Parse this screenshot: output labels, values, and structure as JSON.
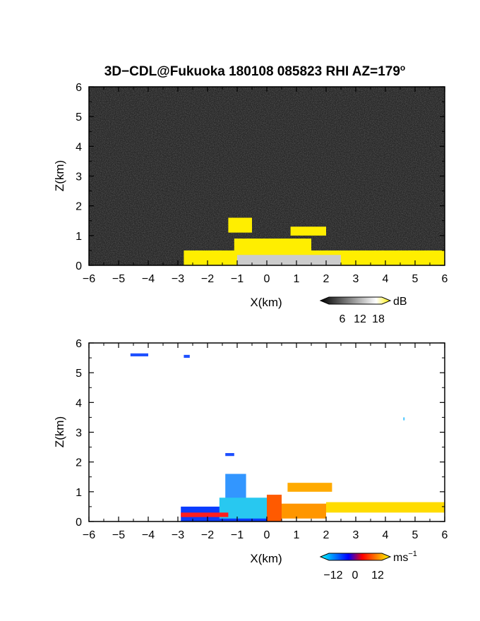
{
  "chart_data": [
    {
      "type": "heatmap",
      "title": "3D−CDL@Fukuoka 180108 085823 RHI AZ=179",
      "title_superscript": "o",
      "xlabel": "X(km)",
      "ylabel": "Z(km)",
      "xlim": [
        -6,
        6
      ],
      "ylim": [
        0,
        6
      ],
      "x_ticks": [
        "−6",
        "−5",
        "−4",
        "−3",
        "−2",
        "−1",
        "0",
        "1",
        "2",
        "3",
        "4",
        "5",
        "6"
      ],
      "y_ticks": [
        "0",
        "1",
        "2",
        "3",
        "4",
        "5",
        "6"
      ],
      "colorbar": {
        "unit": "dB",
        "ticks": [
          "6",
          "12",
          "18"
        ],
        "colors": [
          "#000000",
          "#ffffff",
          "#ffee00"
        ]
      },
      "background": "#262626",
      "echoes": [
        {
          "x": [
            -2.8,
            6.0
          ],
          "z": [
            0.0,
            0.5
          ],
          "dB": 18,
          "color": "#ffee00"
        },
        {
          "x": [
            -1.1,
            1.5
          ],
          "z": [
            0.3,
            0.9
          ],
          "dB": 18,
          "color": "#ffee00"
        },
        {
          "x": [
            -1.3,
            -0.5
          ],
          "z": [
            1.1,
            1.6
          ],
          "dB": 18,
          "color": "#ffee00"
        },
        {
          "x": [
            0.8,
            2.0
          ],
          "z": [
            1.0,
            1.3
          ],
          "dB": 18,
          "color": "#ffee00"
        },
        {
          "x": [
            -1.0,
            2.5
          ],
          "z": [
            0.0,
            0.35
          ],
          "dB": 10,
          "color": "#cccccc"
        }
      ]
    },
    {
      "type": "heatmap",
      "xlabel": "X(km)",
      "ylabel": "Z(km)",
      "xlim": [
        -6,
        6
      ],
      "ylim": [
        0,
        6
      ],
      "x_ticks": [
        "−6",
        "−5",
        "−4",
        "−3",
        "−2",
        "−1",
        "0",
        "1",
        "2",
        "3",
        "4",
        "5",
        "6"
      ],
      "y_ticks": [
        "0",
        "1",
        "2",
        "3",
        "4",
        "5",
        "6"
      ],
      "colorbar": {
        "unit": "ms",
        "unit_superscript": "−1",
        "ticks": [
          "−12",
          "0",
          "12"
        ],
        "colors": [
          "#00ffff",
          "#0000ff",
          "#ff0000",
          "#ffff00"
        ]
      },
      "background": "#ffffff",
      "echoes": [
        {
          "x": [
            -4.6,
            -4.0
          ],
          "z": [
            5.55,
            5.65
          ],
          "velocity": -14,
          "color": "#1e50ff"
        },
        {
          "x": [
            -2.8,
            -2.6
          ],
          "z": [
            5.5,
            5.6
          ],
          "velocity": -14,
          "color": "#1e50ff"
        },
        {
          "x": [
            4.6,
            4.65
          ],
          "z": [
            3.4,
            3.5
          ],
          "velocity": -6,
          "color": "#50c8ff"
        },
        {
          "x": [
            -1.4,
            -1.1
          ],
          "z": [
            2.2,
            2.3
          ],
          "velocity": -14,
          "color": "#1e50ff"
        },
        {
          "x": [
            -1.4,
            -0.7
          ],
          "z": [
            0.6,
            1.6
          ],
          "velocity": -8,
          "color": "#3296ff"
        },
        {
          "x": [
            -2.9,
            0.0
          ],
          "z": [
            0.0,
            0.5
          ],
          "velocity": -10,
          "color": "#0a3cff"
        },
        {
          "x": [
            -1.6,
            0.0
          ],
          "z": [
            0.1,
            0.8
          ],
          "velocity": -5,
          "color": "#28c8f0"
        },
        {
          "x": [
            0.0,
            0.5
          ],
          "z": [
            0.0,
            0.9
          ],
          "velocity": 5,
          "color": "#ff5a00"
        },
        {
          "x": [
            0.5,
            2.0
          ],
          "z": [
            0.1,
            0.6
          ],
          "velocity": 8,
          "color": "#ff9600"
        },
        {
          "x": [
            2.0,
            6.0
          ],
          "z": [
            0.3,
            0.65
          ],
          "velocity": 12,
          "color": "#ffdc00"
        },
        {
          "x": [
            0.7,
            2.2
          ],
          "z": [
            1.0,
            1.3
          ],
          "velocity": 10,
          "color": "#ffaa00"
        },
        {
          "x": [
            -2.9,
            -1.3
          ],
          "z": [
            0.15,
            0.3
          ],
          "velocity": 3,
          "color": "#ff1e1e"
        }
      ]
    }
  ]
}
